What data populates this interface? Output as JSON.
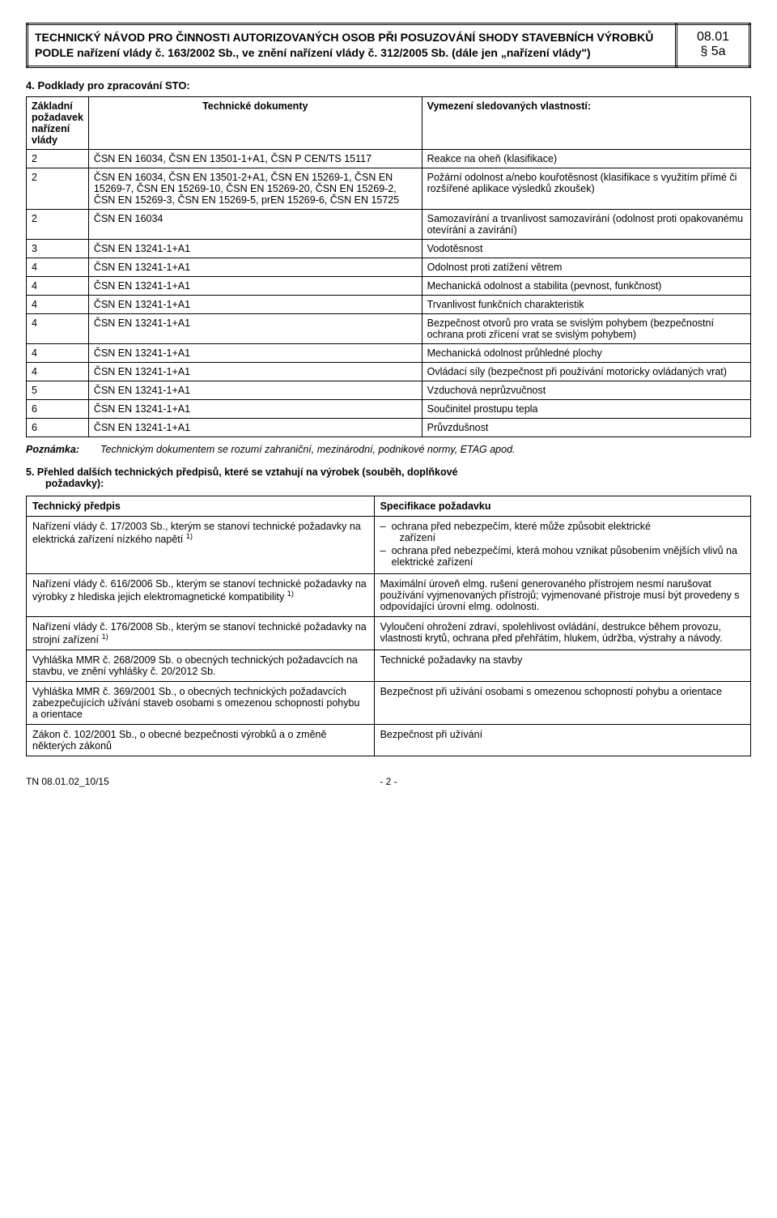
{
  "header": {
    "title": "TECHNICKÝ NÁVOD PRO ČINNOSTI AUTORIZOVANÝCH OSOB PŘI POSUZOVÁNÍ SHODY STAVEBNÍCH VÝROBKŮ PODLE nařízení vlády č. 163/2002 Sb., ve znění nařízení vlády č. 312/2005 Sb. (dále jen „nařízení vlády\")",
    "code_top": "08.01",
    "code_bottom": "§ 5a"
  },
  "section4": {
    "heading": "4.  Podklady pro zpracování STO:",
    "columns": {
      "c1": "Základní požadavek nařízení vlády",
      "c2": "Technické dokumenty",
      "c3": "Vymezení sledovaných vlastností:"
    },
    "rows": [
      {
        "n": "2",
        "doc": "ČSN EN 16034, ČSN EN 13501-1+A1,  ČSN P CEN/TS 15117",
        "prop": "Reakce na oheň (klasifikace)"
      },
      {
        "n": "2",
        "doc": "ČSN EN 16034, ČSN EN 13501-2+A1, ČSN EN 15269-1, ČSN EN 15269-7, ČSN EN 15269-10, ČSN EN 15269-20, ČSN EN 15269-2, ČSN EN 15269-3, ČSN EN 15269-5,  prEN 15269-6, ČSN EN 15725",
        "prop": "Požární odolnost a/nebo kouřotěsnost (klasifikace s využitím přímé či rozšířené aplikace výsledků zkoušek)"
      },
      {
        "n": "2",
        "doc": "ČSN EN 16034",
        "prop": "Samozavírání a trvanlivost samozavírání (odolnost proti opakovanému otevírání a zavírání)"
      },
      {
        "n": "3",
        "doc": "ČSN EN 13241-1+A1",
        "prop": "Vodotěsnost"
      },
      {
        "n": "4",
        "doc": "ČSN EN 13241-1+A1",
        "prop": "Odolnost proti zatížení větrem"
      },
      {
        "n": "4",
        "doc": "ČSN EN 13241-1+A1",
        "prop": "Mechanická odolnost a stabilita (pevnost, funkčnost)"
      },
      {
        "n": "4",
        "doc": "ČSN EN 13241-1+A1",
        "prop": "Trvanlivost funkčních charakteristik"
      },
      {
        "n": "4",
        "doc": "ČSN EN 13241-1+A1",
        "prop": "Bezpečnost otvorů pro vrata se svislým pohybem (bezpečnostní ochrana proti zřícení vrat se svislým pohybem)"
      },
      {
        "n": "4",
        "doc": "ČSN EN 13241-1+A1",
        "prop": "Mechanická odolnost průhledné plochy"
      },
      {
        "n": "4",
        "doc": "ČSN EN 13241-1+A1",
        "prop": "Ovládací síly (bezpečnost při používání motoricky ovládaných vrat)"
      },
      {
        "n": "5",
        "doc": "ČSN EN 13241-1+A1",
        "prop": "Vzduchová neprůzvučnost"
      },
      {
        "n": "6",
        "doc": "ČSN EN 13241-1+A1",
        "prop": "Součinitel prostupu tepla"
      },
      {
        "n": "6",
        "doc": "ČSN EN 13241-1+A1",
        "prop": "Průvzdušnost"
      }
    ],
    "note_label": "Poznámka:",
    "note_text": "Technickým dokumentem se rozumí zahraniční, mezinárodní, podnikové normy, ETAG apod."
  },
  "section5": {
    "heading_line1": "5.  Přehled dalších technických předpisů, které se vztahují na výrobek (souběh, doplňkové",
    "heading_line2": "požadavky):",
    "col1": "Technický předpis",
    "col2": "Specifikace požadavku",
    "rows": [
      {
        "left_html": "Nařízení vlády č. 17/2003 Sb., kterým se stanoví technické požadavky na elektrická zařízení nízkého napětí <sup>1)</sup>",
        "right_list": [
          {
            "main": "ochrana před nebezpečím, které může způsobit elektrické",
            "sub": "zařízení"
          },
          {
            "main": "ochrana před nebezpečími, která mohou vznikat působením vnějších vlivů na elektrické zařízení"
          }
        ]
      },
      {
        "left_html": "Nařízení vlády č. 616/2006 Sb., kterým se stanoví technické požadavky na výrobky z hlediska jejich elektromagnetické kompatibility <sup>1)</sup>",
        "right_text": "Maximální úroveň elmg. rušení generovaného přístrojem nesmí narušovat používání vyjmenovaných přístrojů; vyjmenované přístroje musí být provedeny s odpovídající úrovní elmg. odolnosti."
      },
      {
        "left_html": "Nařízení vlády č. 176/2008 Sb., kterým se stanoví technické požadavky na strojní zařízení <sup>1)</sup>",
        "right_text": "Vyloučení ohrožení zdraví, spolehlivost ovládání, destrukce během provozu, vlastnosti krytů, ochrana před přehřátím, hlukem, údržba, výstrahy a návody."
      },
      {
        "left_html": "Vyhláška MMR č. 268/2009 Sb. o obecných technických požadavcích na stavbu, ve znění vyhlášky č. 20/2012 Sb.",
        "right_text": "Technické požadavky na stavby"
      },
      {
        "left_html": "Vyhláška MMR č. 369/2001 Sb., o obecných technických požadavcích zabezpečujících užívání staveb osobami s omezenou schopností pohybu a orientace",
        "right_text": "Bezpečnost při  užívání osobami s omezenou schopností pohybu a orientace"
      },
      {
        "left_html": "Zákon č. 102/2001 Sb., o obecné bezpečnosti výrobků a o změně některých zákonů",
        "right_text": "Bezpečnost při užívání"
      }
    ]
  },
  "footer": {
    "left": "TN 08.01.02_10/15",
    "page": "- 2 -"
  }
}
